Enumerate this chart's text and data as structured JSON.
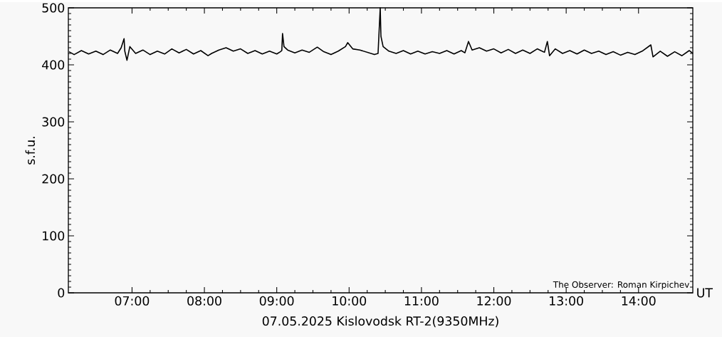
{
  "chart_data": {
    "type": "line",
    "title": "07.05.2025  Kislovodsk RT-2(9350MHz)",
    "xlabel": "UT",
    "ylabel": "s.f.u.",
    "annotations": [
      "The Observer: Roman Kirpichev"
    ],
    "xlim": [
      6.12,
      14.75
    ],
    "ylim": [
      0,
      500
    ],
    "xticks": [
      {
        "value": 7,
        "label": "07:00"
      },
      {
        "value": 8,
        "label": "08:00"
      },
      {
        "value": 9,
        "label": "09:00"
      },
      {
        "value": 10,
        "label": "10:00"
      },
      {
        "value": 11,
        "label": "11:00"
      },
      {
        "value": 12,
        "label": "12:00"
      },
      {
        "value": 13,
        "label": "13:00"
      },
      {
        "value": 14,
        "label": "14:00"
      }
    ],
    "yticks": [
      0,
      100,
      200,
      300,
      400,
      500
    ],
    "marker": "none",
    "line_style": "solid",
    "series": [
      {
        "color": "#000000",
        "x": [
          6.13,
          6.2,
          6.3,
          6.4,
          6.5,
          6.6,
          6.7,
          6.8,
          6.85,
          6.89,
          6.9,
          6.93,
          6.97,
          7.05,
          7.15,
          7.25,
          7.35,
          7.45,
          7.55,
          7.65,
          7.75,
          7.85,
          7.95,
          8.05,
          8.1,
          8.2,
          8.3,
          8.4,
          8.5,
          8.6,
          8.7,
          8.8,
          8.9,
          9.0,
          9.05,
          9.07,
          9.08,
          9.1,
          9.15,
          9.25,
          9.35,
          9.45,
          9.56,
          9.65,
          9.75,
          9.85,
          9.95,
          9.98,
          10.05,
          10.15,
          10.25,
          10.35,
          10.4,
          10.43,
          10.44,
          10.47,
          10.55,
          10.65,
          10.75,
          10.85,
          10.95,
          11.05,
          11.15,
          11.25,
          11.35,
          11.45,
          11.55,
          11.6,
          11.65,
          11.7,
          11.8,
          11.9,
          12.0,
          12.1,
          12.2,
          12.3,
          12.4,
          12.5,
          12.6,
          12.7,
          12.74,
          12.77,
          12.85,
          12.95,
          13.05,
          13.15,
          13.25,
          13.35,
          13.45,
          13.55,
          13.65,
          13.75,
          13.85,
          13.95,
          14.05,
          14.17,
          14.2,
          14.3,
          14.4,
          14.5,
          14.6,
          14.7,
          14.75
        ],
        "values": [
          423,
          418,
          425,
          419,
          424,
          418,
          426,
          420,
          430,
          446,
          424,
          408,
          432,
          420,
          426,
          418,
          424,
          419,
          428,
          421,
          427,
          419,
          425,
          416,
          420,
          426,
          430,
          424,
          428,
          420,
          425,
          419,
          424,
          419,
          423,
          425,
          455,
          432,
          426,
          421,
          426,
          422,
          431,
          423,
          418,
          424,
          432,
          439,
          428,
          426,
          422,
          418,
          420,
          500,
          450,
          432,
          424,
          420,
          425,
          419,
          424,
          419,
          423,
          420,
          425,
          419,
          425,
          421,
          441,
          426,
          430,
          424,
          428,
          421,
          427,
          420,
          426,
          420,
          428,
          422,
          441,
          416,
          428,
          420,
          425,
          419,
          426,
          420,
          424,
          418,
          423,
          417,
          422,
          418,
          424,
          435,
          414,
          424,
          415,
          423,
          416,
          425,
          420
        ]
      }
    ]
  }
}
